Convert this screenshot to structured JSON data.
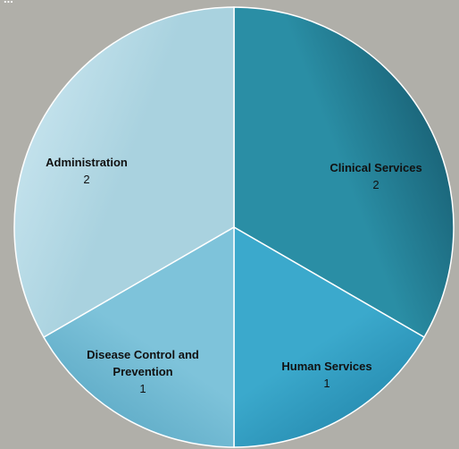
{
  "chart_data": {
    "type": "pie",
    "title": "...",
    "start_angle_deg": 0,
    "direction": "clockwise",
    "slices": [
      {
        "label": "Clinical Services",
        "value": 2,
        "color": "#2a8ea5",
        "edge_color": "#185e72"
      },
      {
        "label": "Human Services",
        "value": 1,
        "color": "#3ba9cc",
        "edge_color": "#2488ad"
      },
      {
        "label": "Disease Control and Prevention",
        "value": 1,
        "color": "#7ec3da",
        "edge_color": "#5aa8c4"
      },
      {
        "label": "Administration",
        "value": 2,
        "color": "#a9d2df",
        "edge_color": "#c7e4ee"
      }
    ]
  }
}
